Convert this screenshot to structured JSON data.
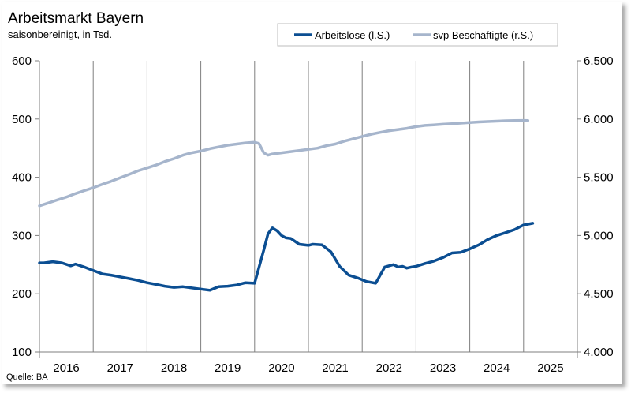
{
  "chart_data": {
    "type": "line",
    "title": "Arbeitsmarkt Bayern",
    "subtitle": "saisonbereinigt, in Tsd.",
    "source": "Quelle: BA",
    "x_categories": [
      "2016",
      "2017",
      "2018",
      "2019",
      "2020",
      "2021",
      "2022",
      "2023",
      "2024",
      "2025"
    ],
    "y_left": {
      "ylim": [
        100,
        600
      ],
      "ticks": [
        "100",
        "200",
        "300",
        "400",
        "500",
        "600"
      ]
    },
    "y_right": {
      "ylim": [
        4000,
        6500
      ],
      "ticks": [
        "4.000",
        "4.500",
        "5.000",
        "5.500",
        "6.000",
        "6.500"
      ]
    },
    "grid": "vertical",
    "legend_position": "top-right",
    "series": [
      {
        "name": "Arbeitslose (l.S.)",
        "axis": "left",
        "color": "#0b4e92",
        "x": [
          2016.0,
          2016.08,
          2016.25,
          2016.42,
          2016.58,
          2016.67,
          2016.83,
          2017.0,
          2017.17,
          2017.33,
          2017.5,
          2017.67,
          2017.83,
          2018.0,
          2018.17,
          2018.33,
          2018.5,
          2018.67,
          2018.83,
          2019.0,
          2019.17,
          2019.33,
          2019.5,
          2019.67,
          2019.83,
          2020.0,
          2020.17,
          2020.25,
          2020.33,
          2020.42,
          2020.5,
          2020.58,
          2020.67,
          2020.83,
          2021.0,
          2021.08,
          2021.25,
          2021.42,
          2021.58,
          2021.75,
          2021.92,
          2022.08,
          2022.25,
          2022.42,
          2022.5,
          2022.58,
          2022.67,
          2022.75,
          2022.83,
          2022.92,
          2023.0,
          2023.17,
          2023.33,
          2023.5,
          2023.67,
          2023.83,
          2024.0,
          2024.17,
          2024.33,
          2024.5,
          2024.67,
          2024.83,
          2025.0,
          2025.17
        ],
        "values": [
          253,
          253,
          255,
          253,
          248,
          251,
          246,
          240,
          234,
          232,
          229,
          226,
          223,
          219,
          216,
          213,
          211,
          212,
          210,
          208,
          206,
          212,
          213,
          215,
          219,
          218,
          275,
          303,
          313,
          308,
          300,
          296,
          295,
          285,
          283,
          285,
          284,
          272,
          247,
          232,
          227,
          221,
          218,
          246,
          248,
          250,
          246,
          247,
          244,
          246,
          247,
          252,
          256,
          262,
          270,
          271,
          277,
          284,
          293,
          300,
          305,
          310,
          318,
          321
        ]
      },
      {
        "name": "svp Beschäftigte (r.S.)",
        "axis": "right",
        "color": "#a6b5cc",
        "x": [
          2016.0,
          2016.17,
          2016.33,
          2016.5,
          2016.67,
          2016.83,
          2017.0,
          2017.17,
          2017.33,
          2017.5,
          2017.67,
          2017.83,
          2018.0,
          2018.17,
          2018.33,
          2018.5,
          2018.67,
          2018.83,
          2019.0,
          2019.17,
          2019.33,
          2019.5,
          2019.67,
          2019.83,
          2020.0,
          2020.08,
          2020.17,
          2020.25,
          2020.33,
          2020.5,
          2020.67,
          2020.83,
          2021.0,
          2021.17,
          2021.33,
          2021.5,
          2021.67,
          2021.83,
          2022.0,
          2022.17,
          2022.33,
          2022.5,
          2022.67,
          2022.83,
          2023.0,
          2023.17,
          2023.33,
          2023.5,
          2023.67,
          2023.83,
          2024.0,
          2024.17,
          2024.33,
          2024.5,
          2024.67,
          2024.83,
          2025.0,
          2025.08
        ],
        "values": [
          5255,
          5280,
          5305,
          5330,
          5360,
          5385,
          5410,
          5440,
          5465,
          5495,
          5525,
          5555,
          5580,
          5605,
          5635,
          5660,
          5690,
          5710,
          5725,
          5745,
          5760,
          5775,
          5785,
          5795,
          5800,
          5790,
          5710,
          5690,
          5700,
          5710,
          5720,
          5730,
          5740,
          5750,
          5770,
          5785,
          5810,
          5830,
          5850,
          5870,
          5885,
          5900,
          5910,
          5920,
          5935,
          5945,
          5950,
          5955,
          5960,
          5965,
          5970,
          5975,
          5978,
          5982,
          5985,
          5987,
          5988,
          5987
        ]
      }
    ]
  }
}
